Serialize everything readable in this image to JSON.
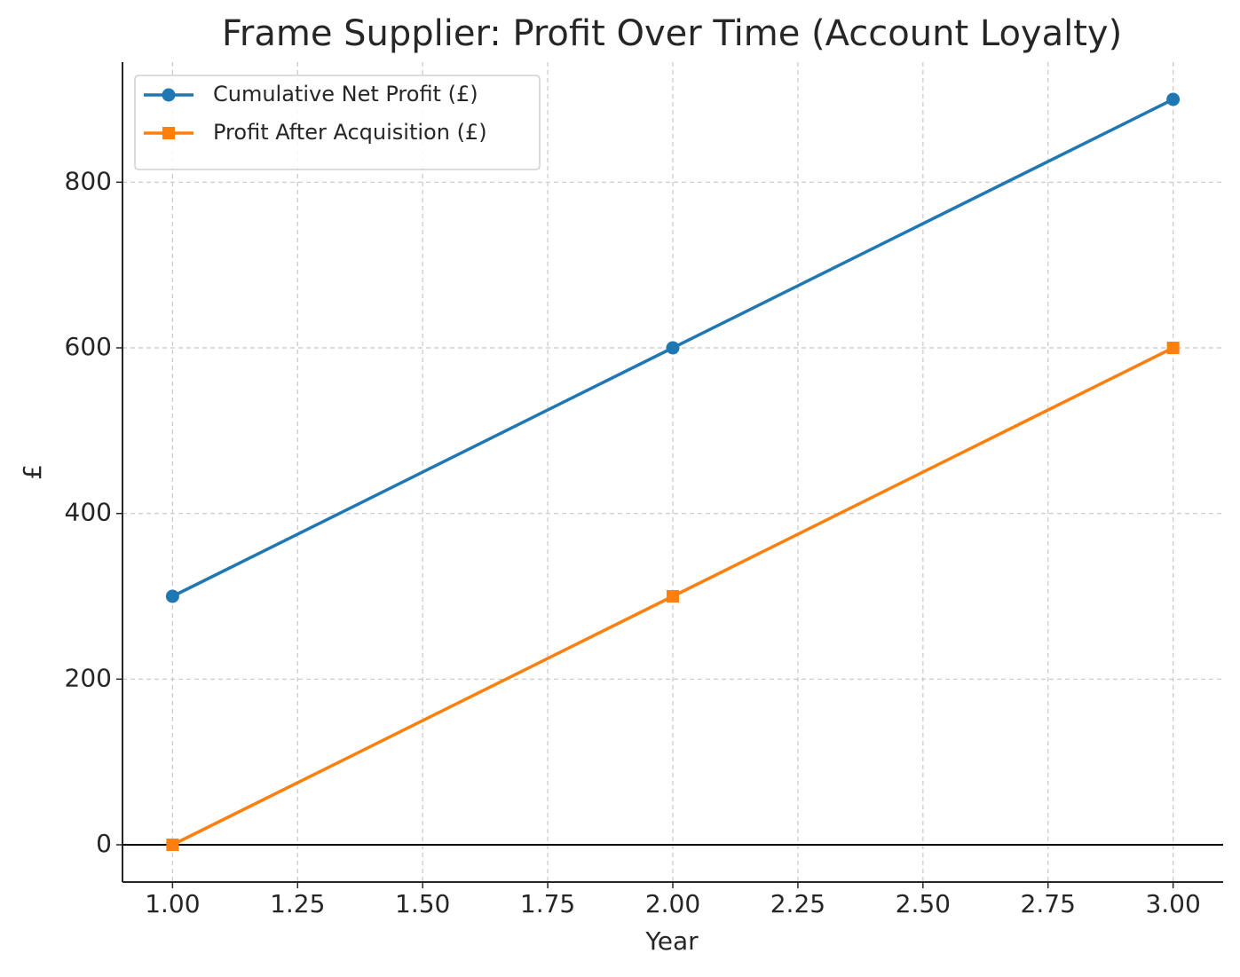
{
  "chart_data": {
    "type": "line",
    "title": "Frame Supplier: Profit Over Time (Account Loyalty)",
    "x_label": "Year",
    "y_label": "£",
    "x": [
      1,
      2,
      3
    ],
    "series": [
      {
        "name": "Cumulative Net Profit (£)",
        "color": "#1f77b4",
        "marker": "circle",
        "values": [
          300,
          600,
          900
        ]
      },
      {
        "name": "Profit After Acquisition (£)",
        "color": "#ff7f0e",
        "marker": "square",
        "values": [
          0,
          300,
          600
        ]
      }
    ],
    "xlim": [
      0.9,
      3.1
    ],
    "xticks": [
      {
        "value": 1,
        "label": "1.00"
      },
      {
        "value": 1.25,
        "label": "1.25"
      },
      {
        "value": 1.5,
        "label": "1.50"
      },
      {
        "value": 1.75,
        "label": "1.75"
      },
      {
        "value": 2,
        "label": "2.00"
      },
      {
        "value": 2.25,
        "label": "2.25"
      },
      {
        "value": 2.5,
        "label": "2.50"
      },
      {
        "value": 2.75,
        "label": "2.75"
      },
      {
        "value": 3,
        "label": "3.00"
      }
    ],
    "ylim": [
      -45,
      945
    ],
    "yticks": [
      0,
      200,
      400,
      600,
      800
    ],
    "grid": true,
    "zero_line": true,
    "legend": "upper left"
  }
}
